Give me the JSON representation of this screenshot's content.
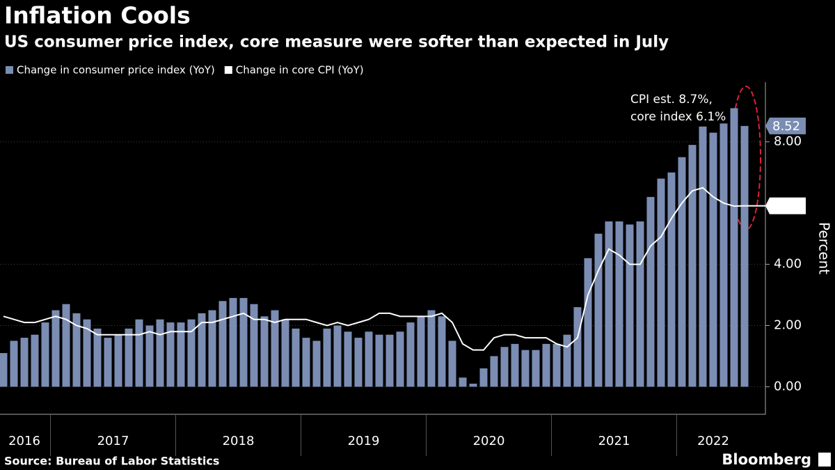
{
  "header": {
    "title": "Inflation Cools",
    "subtitle": "US consumer price index, core measure were softer than expected in July"
  },
  "chart_data": {
    "type": "bar-line",
    "categories": [
      "2016",
      null,
      null,
      null,
      null,
      "2017",
      null,
      null,
      null,
      null,
      null,
      null,
      null,
      null,
      null,
      null,
      null,
      "2018",
      null,
      null,
      null,
      null,
      null,
      null,
      null,
      null,
      null,
      null,
      null,
      "2019",
      null,
      null,
      null,
      null,
      null,
      null,
      null,
      null,
      null,
      null,
      null,
      "2020",
      null,
      null,
      null,
      null,
      null,
      null,
      null,
      null,
      null,
      null,
      null,
      "2021",
      null,
      null,
      null,
      null,
      null,
      null,
      null,
      null,
      null,
      null,
      null,
      "2022",
      null,
      null,
      null,
      null,
      null,
      null
    ],
    "series": [
      {
        "name": "Change in consumer price index (YoY)",
        "kind": "bar",
        "color": "#7b8db3",
        "values": [
          1.1,
          1.5,
          1.6,
          1.7,
          2.1,
          2.5,
          2.7,
          2.4,
          2.2,
          1.9,
          1.6,
          1.7,
          1.9,
          2.2,
          2.0,
          2.2,
          2.1,
          2.1,
          2.2,
          2.4,
          2.5,
          2.8,
          2.9,
          2.9,
          2.7,
          2.3,
          2.5,
          2.2,
          1.9,
          1.6,
          1.5,
          1.9,
          2.0,
          1.8,
          1.6,
          1.8,
          1.7,
          1.7,
          1.8,
          2.1,
          2.3,
          2.5,
          2.3,
          1.5,
          0.3,
          0.1,
          0.6,
          1.0,
          1.3,
          1.4,
          1.2,
          1.2,
          1.4,
          1.4,
          1.7,
          2.6,
          4.2,
          5.0,
          5.4,
          5.4,
          5.3,
          5.4,
          6.2,
          6.8,
          7.0,
          7.5,
          7.9,
          8.5,
          8.3,
          8.6,
          9.1,
          8.52
        ]
      },
      {
        "name": "Change in core CPI (YoY)",
        "kind": "line",
        "color": "#ffffff",
        "values": [
          2.3,
          2.2,
          2.1,
          2.1,
          2.2,
          2.3,
          2.2,
          2.0,
          1.9,
          1.7,
          1.7,
          1.7,
          1.7,
          1.7,
          1.8,
          1.7,
          1.8,
          1.8,
          1.8,
          2.1,
          2.1,
          2.2,
          2.3,
          2.4,
          2.2,
          2.2,
          2.1,
          2.2,
          2.2,
          2.2,
          2.1,
          2.0,
          2.1,
          2.0,
          2.1,
          2.2,
          2.4,
          2.4,
          2.3,
          2.3,
          2.3,
          2.3,
          2.4,
          2.1,
          1.4,
          1.2,
          1.2,
          1.6,
          1.7,
          1.7,
          1.6,
          1.6,
          1.6,
          1.4,
          1.3,
          1.6,
          3.0,
          3.8,
          4.5,
          4.3,
          4.0,
          4.0,
          4.6,
          4.9,
          5.5,
          6.0,
          6.4,
          6.5,
          6.2,
          6.0,
          5.9,
          5.91
        ]
      }
    ],
    "ylim": [
      -0.9,
      9.95
    ],
    "yticks": [
      {
        "value": 0,
        "label": "0.00"
      },
      {
        "value": 2,
        "label": "2.00"
      },
      {
        "value": 4,
        "label": "4.00"
      },
      {
        "value": 8,
        "label": "8.00"
      }
    ],
    "y_label": "Percent",
    "grid": true,
    "annotation": [
      "CPI est. 8.7%,",
      "core index 6.1%"
    ],
    "annotation_color": "#e0203a"
  },
  "footer": {
    "source": "Source: Bureau of Labor Statistics",
    "brand": "Bloomberg"
  }
}
